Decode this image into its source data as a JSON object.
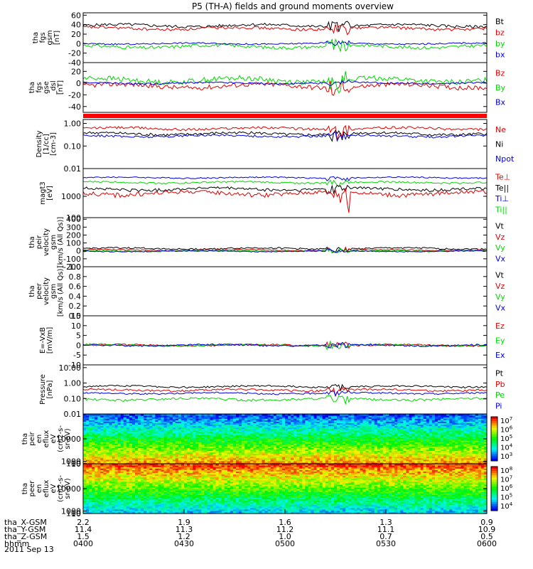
{
  "title": "P5 (TH-A) fields and ground moments overview",
  "colors": {
    "black": "#000000",
    "red": "#e00000",
    "green": "#00d800",
    "blue": "#0000e0",
    "bar": "#ff0000"
  },
  "chart_data": [
    {
      "type": "line",
      "id": "fgs_gsm",
      "ylabel": [
        "tha",
        "fgs",
        "gsm",
        "[nT]"
      ],
      "yticks": [
        "60",
        "40",
        "20",
        "0",
        "-20",
        "-40"
      ],
      "ylim": [
        -40,
        65
      ],
      "legend": [
        {
          "label": "Bt",
          "color": "black"
        },
        {
          "label": "bz",
          "color": "red"
        },
        {
          "label": "by",
          "color": "green"
        },
        {
          "label": "bx",
          "color": "blue"
        }
      ],
      "series": [
        {
          "name": "Bt",
          "color": "black",
          "base": 38,
          "amp": 6
        },
        {
          "name": "bz",
          "color": "red",
          "base": 32,
          "amp": 6
        },
        {
          "name": "by",
          "color": "green",
          "base": -6,
          "amp": 7
        },
        {
          "name": "bx",
          "color": "blue",
          "base": 0,
          "amp": 3
        }
      ]
    },
    {
      "type": "line",
      "id": "fgs_gse",
      "ylabel": [
        "tha",
        "fgs",
        "gse",
        "_dsl",
        "[nT]"
      ],
      "yticks": [
        "20",
        "0",
        "-20",
        "-40"
      ],
      "ylim": [
        -50,
        35
      ],
      "legend": [
        {
          "label": "Bz",
          "color": "red"
        },
        {
          "label": "By",
          "color": "green"
        },
        {
          "label": "Bx",
          "color": "blue"
        }
      ],
      "series": [
        {
          "name": "Bz",
          "color": "red",
          "base": -5,
          "amp": 8
        },
        {
          "name": "By",
          "color": "green",
          "base": 5,
          "amp": 9
        },
        {
          "name": "Bx",
          "color": "blue",
          "base": 0,
          "amp": 3
        }
      ]
    },
    {
      "type": "bar",
      "id": "mode_bar",
      "color": "bar"
    },
    {
      "type": "line",
      "id": "density",
      "log": true,
      "ylabel": [
        "Density",
        "[1/cc]",
        "[cm-3]"
      ],
      "yticks": [
        "1.00",
        "0.10",
        "0.01"
      ],
      "ylim": [
        0.01,
        1.5
      ],
      "legend": [
        {
          "label": "Ne",
          "color": "red"
        },
        {
          "label": "Ni",
          "color": "black"
        },
        {
          "label": "Npot",
          "color": "blue"
        }
      ],
      "series": [
        {
          "name": "Ne",
          "color": "red",
          "base": 0.6,
          "amp": 0.15
        },
        {
          "name": "Ni",
          "color": "black",
          "base": 0.35,
          "amp": 0.1
        },
        {
          "name": "Npot",
          "color": "blue",
          "base": 0.28,
          "amp": 0.06
        }
      ]
    },
    {
      "type": "line",
      "id": "temperature",
      "log": true,
      "ylabel": [
        "magt3",
        "[eV]"
      ],
      "yticks": [
        "1000",
        "100"
      ],
      "ylim": [
        100,
        20000
      ],
      "legend": [
        {
          "label": "Te⊥",
          "color": "red"
        },
        {
          "label": "Te||",
          "color": "black"
        },
        {
          "label": "Ti⊥",
          "color": "blue"
        },
        {
          "label": "Ti||",
          "color": "green"
        }
      ],
      "series": [
        {
          "name": "Ti⊥",
          "color": "blue",
          "base": 7500,
          "amp": 1000
        },
        {
          "name": "Ti||",
          "color": "green",
          "base": 4500,
          "amp": 800
        },
        {
          "name": "Te||",
          "color": "black",
          "base": 2200,
          "amp": 700
        },
        {
          "name": "Te⊥",
          "color": "red",
          "base": 1400,
          "amp": 600
        }
      ]
    },
    {
      "type": "line",
      "id": "peir_velocity",
      "ylabel": [
        "tha",
        "peir",
        "velocity",
        "gsm",
        "[km/s (All Qs)]"
      ],
      "yticks": [
        "400",
        "300",
        "200",
        "100",
        "0",
        "-100",
        "-200"
      ],
      "ylim": [
        -200,
        420
      ],
      "legend": [
        {
          "label": "Vt",
          "color": "black"
        },
        {
          "label": "Vz",
          "color": "red"
        },
        {
          "label": "Vy",
          "color": "green"
        },
        {
          "label": "Vx",
          "color": "blue"
        }
      ],
      "series": [
        {
          "name": "Vt",
          "color": "black",
          "base": 30,
          "amp": 20
        },
        {
          "name": "Vz",
          "color": "red",
          "base": 10,
          "amp": 15
        },
        {
          "name": "Vy",
          "color": "green",
          "base": 0,
          "amp": 15
        },
        {
          "name": "Vx",
          "color": "blue",
          "base": -5,
          "amp": 12
        }
      ]
    },
    {
      "type": "line",
      "id": "peer_velocity",
      "ylabel": [
        "tha",
        "peer",
        "velocity",
        "gsm",
        "[km/s (All Qs)]"
      ],
      "yticks": [
        "1.0",
        "0.8",
        "0.6",
        "0.4",
        "0.2",
        "0.0"
      ],
      "ylim": [
        0,
        1
      ],
      "legend": [
        {
          "label": "Vt",
          "color": "black"
        },
        {
          "label": "Vz",
          "color": "red"
        },
        {
          "label": "Vy",
          "color": "green"
        },
        {
          "label": "Vx",
          "color": "blue"
        }
      ],
      "series": []
    },
    {
      "type": "line",
      "id": "efield",
      "ylabel": [
        "E=-VxB",
        "[mV/m]"
      ],
      "yticks": [
        "15",
        "10",
        "5",
        "0",
        "-5",
        "-10"
      ],
      "ylim": [
        -10,
        15
      ],
      "legend": [
        {
          "label": "Ez",
          "color": "red"
        },
        {
          "label": "Ey",
          "color": "green"
        },
        {
          "label": "Ex",
          "color": "blue"
        }
      ],
      "series": [
        {
          "name": "Ez",
          "color": "red",
          "base": 0,
          "amp": 0.8
        },
        {
          "name": "Ey",
          "color": "green",
          "base": 0,
          "amp": 1
        },
        {
          "name": "Ex",
          "color": "blue",
          "base": 0,
          "amp": 0.8
        }
      ]
    },
    {
      "type": "line",
      "id": "pressure",
      "log": true,
      "ylabel": [
        "Pressure",
        "[nPa]"
      ],
      "yticks": [
        "10.00",
        "1.00",
        "0.10",
        "0.01"
      ],
      "ylim": [
        0.01,
        15
      ],
      "legend": [
        {
          "label": "Pt",
          "color": "black"
        },
        {
          "label": "Pb",
          "color": "red"
        },
        {
          "label": "Pe",
          "color": "green"
        },
        {
          "label": "Pi",
          "color": "blue"
        }
      ],
      "series": [
        {
          "name": "Pt",
          "color": "black",
          "base": 0.6,
          "amp": 0.15
        },
        {
          "name": "Pb",
          "color": "red",
          "base": 0.35,
          "amp": 0.1
        },
        {
          "name": "Pi",
          "color": "blue",
          "base": 0.22,
          "amp": 0.05
        },
        {
          "name": "Pe",
          "color": "green",
          "base": 0.09,
          "amp": 0.03
        }
      ]
    },
    {
      "type": "heatmap",
      "id": "peir_eflux",
      "ylabel": [
        "tha",
        "peir",
        "en",
        "eflux",
        "eV",
        "(cm2-s-",
        "sr-eV)"
      ],
      "yticks": [
        "10000",
        "1000",
        "100",
        "10"
      ],
      "ylim": [
        7,
        20000
      ],
      "colorbar_ticks": [
        "10^7",
        "10^6",
        "10^5",
        "10^4",
        "10^3"
      ],
      "clim": [
        3,
        7.5
      ]
    },
    {
      "type": "heatmap",
      "id": "peer_eflux",
      "ylabel": [
        "tha",
        "peer",
        "en",
        "eflux",
        "eV",
        "(cm2-s-",
        "sr-eV)"
      ],
      "yticks": [
        "10000",
        "1000",
        "100",
        "10"
      ],
      "ylim": [
        7,
        20000
      ],
      "colorbar_ticks": [
        "10^8",
        "10^7",
        "10^6",
        "10^5",
        "10^4"
      ],
      "clim": [
        3.7,
        8.4
      ]
    }
  ],
  "time_axis": {
    "date": "2011 Sep 13",
    "rows": [
      {
        "label": "tha_X-GSM",
        "values": [
          "2.2",
          "1.9",
          "1.6",
          "1.3",
          "0.9"
        ]
      },
      {
        "label": "tha_Y-GSM",
        "values": [
          "11.4",
          "11.3",
          "11.2",
          "11.1",
          "10.9"
        ]
      },
      {
        "label": "tha_Z-GSM",
        "values": [
          "1.5",
          "1.2",
          "1.0",
          "0.7",
          "0.5"
        ]
      },
      {
        "label": "hhmm",
        "values": [
          "0400",
          "0430",
          "0500",
          "0530",
          "0600"
        ]
      }
    ]
  }
}
